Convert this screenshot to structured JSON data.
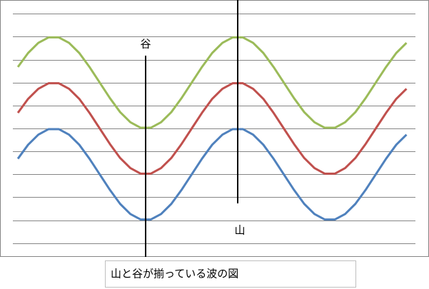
{
  "chart_data": {
    "type": "line",
    "annotations": [
      "谷",
      "山"
    ],
    "caption": "山と谷が揃っている波の図",
    "x": [
      20,
      40,
      60,
      80,
      100,
      120,
      140,
      160,
      180,
      200,
      220,
      240,
      260,
      280,
      300,
      320,
      340,
      360,
      380,
      400,
      420,
      440,
      460,
      480,
      500,
      520,
      540,
      560,
      580,
      600,
      620,
      640,
      660,
      680,
      700,
      720,
      740,
      760,
      780
    ],
    "xlim": [
      -15,
      824
    ],
    "ylim": [
      -0.6,
      10.6
    ],
    "yticks": [
      0,
      1,
      2,
      3,
      4,
      5,
      6,
      7,
      8,
      9,
      10
    ],
    "grid": true,
    "series": [
      {
        "color": "#9bbb59",
        "values": [
          7.68,
          8.29,
          8.73,
          8.97,
          8.97,
          8.73,
          8.29,
          7.68,
          7,
          6.32,
          5.71,
          5.27,
          5.03,
          5.03,
          5.27,
          5.71,
          6.32,
          7,
          7.68,
          8.29,
          8.73,
          8.97,
          8.97,
          8.73,
          8.29,
          7.68,
          7,
          6.32,
          5.71,
          5.27,
          5.03,
          5.03,
          5.27,
          5.71,
          6.32,
          7,
          7.68,
          8.29,
          8.73
        ]
      },
      {
        "color": "#c0504d",
        "values": [
          5.68,
          6.29,
          6.73,
          6.97,
          6.97,
          6.73,
          6.29,
          5.68,
          5,
          4.32,
          3.71,
          3.27,
          3.03,
          3.03,
          3.27,
          3.71,
          4.32,
          5,
          5.68,
          6.29,
          6.73,
          6.97,
          6.97,
          6.73,
          6.29,
          5.68,
          5,
          4.32,
          3.71,
          3.27,
          3.03,
          3.03,
          3.27,
          3.71,
          4.32,
          5,
          5.68,
          6.29,
          6.73
        ]
      },
      {
        "color": "#4f81bd",
        "values": [
          3.68,
          4.29,
          4.73,
          4.97,
          4.97,
          4.73,
          4.29,
          3.68,
          3,
          2.32,
          1.71,
          1.27,
          1.03,
          1.03,
          1.27,
          1.71,
          2.32,
          3,
          3.68,
          4.29,
          4.73,
          4.97,
          4.97,
          4.73,
          4.29,
          3.68,
          3,
          2.32,
          1.71,
          1.27,
          1.03,
          1.03,
          1.27,
          1.71,
          2.32,
          3,
          3.68,
          4.29,
          4.73
        ]
      }
    ]
  }
}
